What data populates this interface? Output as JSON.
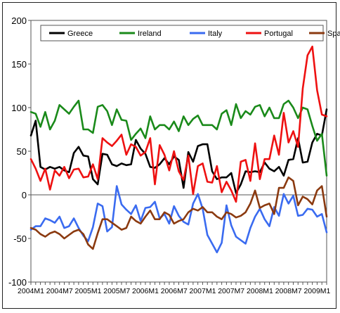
{
  "chart_data": {
    "type": "line",
    "x": [
      "2004M1",
      "2004M2",
      "2004M3",
      "2004M4",
      "2004M5",
      "2004M6",
      "2004M7",
      "2004M8",
      "2004M9",
      "2004M10",
      "2004M11",
      "2004M12",
      "2005M1",
      "2005M2",
      "2005M3",
      "2005M4",
      "2005M5",
      "2005M6",
      "2005M7",
      "2005M8",
      "2005M9",
      "2005M10",
      "2005M11",
      "2005M12",
      "2006M1",
      "2006M2",
      "2006M3",
      "2006M4",
      "2006M5",
      "2006M6",
      "2006M7",
      "2006M8",
      "2006M9",
      "2006M10",
      "2006M11",
      "2006M12",
      "2007M1",
      "2007M2",
      "2007M3",
      "2007M4",
      "2007M5",
      "2007M6",
      "2007M7",
      "2007M8",
      "2007M9",
      "2007M10",
      "2007M11",
      "2007M12",
      "2008M1",
      "2008M2",
      "2008M3",
      "2008M4",
      "2008M5",
      "2008M6",
      "2008M7",
      "2008M8",
      "2008M9",
      "2008M10",
      "2008M11",
      "2008M12",
      "2009M1",
      "2009M2",
      "2009M3"
    ],
    "x_tick_labels": [
      "2004M1",
      "2004M7",
      "2005M1",
      "2005M7",
      "2006M1",
      "2006M7",
      "2007M1",
      "2007M7",
      "2008M1",
      "2008M7",
      "2009M1"
    ],
    "ylim": [
      -100,
      200
    ],
    "y_ticks": [
      -100,
      -50,
      0,
      50,
      100,
      150,
      200
    ],
    "grid": false,
    "legend_position": "top",
    "series": [
      {
        "name": "Greece",
        "color": "#000000",
        "values": [
          68,
          85,
          32,
          29,
          32,
          30,
          32,
          28,
          26,
          48,
          55,
          45,
          44,
          18,
          12,
          47,
          46,
          35,
          33,
          36,
          34,
          35,
          63,
          53,
          47,
          32,
          31,
          35,
          42,
          35,
          44,
          40,
          8,
          49,
          38,
          56,
          58,
          58,
          27,
          18,
          20,
          20,
          25,
          2,
          12,
          27,
          26,
          27,
          26,
          37,
          30,
          27,
          32,
          22,
          40,
          41,
          65,
          37,
          38,
          60,
          70,
          68,
          98
        ]
      },
      {
        "name": "Ireland",
        "color": "#1a8a1a",
        "values": [
          95,
          93,
          78,
          95,
          75,
          85,
          103,
          98,
          93,
          101,
          108,
          75,
          75,
          71,
          101,
          103,
          96,
          80,
          98,
          86,
          85,
          63,
          70,
          76,
          65,
          90,
          75,
          80,
          80,
          75,
          84,
          73,
          90,
          80,
          87,
          91,
          80,
          80,
          80,
          75,
          93,
          97,
          80,
          104,
          88,
          96,
          92,
          101,
          103,
          90,
          100,
          88,
          88,
          104,
          108,
          100,
          88,
          100,
          98,
          79,
          62,
          70,
          22
        ]
      },
      {
        "name": "Italy",
        "color": "#3a6bf0",
        "values": [
          -40,
          -36,
          -36,
          -27,
          -29,
          -32,
          -25,
          -38,
          -36,
          -27,
          -38,
          -47,
          -53,
          -37,
          -10,
          -13,
          -42,
          -37,
          10,
          -11,
          -17,
          -22,
          -12,
          -30,
          -15,
          -14,
          -8,
          -27,
          -22,
          -33,
          -13,
          -24,
          -31,
          -34,
          -10,
          1,
          -16,
          -46,
          -56,
          -66,
          -55,
          -12,
          -35,
          -48,
          -52,
          -56,
          -38,
          -25,
          -16,
          -28,
          -36,
          -14,
          -24,
          1,
          -10,
          -1,
          -24,
          -23,
          -16,
          -17,
          -25,
          -22,
          -43
        ]
      },
      {
        "name": "Portugal",
        "color": "#ee1111",
        "values": [
          41,
          30,
          16,
          30,
          6,
          28,
          22,
          32,
          19,
          29,
          30,
          20,
          21,
          35,
          18,
          65,
          60,
          56,
          62,
          69,
          46,
          58,
          55,
          45,
          49,
          65,
          12,
          57,
          46,
          28,
          50,
          27,
          17,
          45,
          1,
          33,
          36,
          15,
          14,
          33,
          3,
          15,
          5,
          -8,
          38,
          40,
          16,
          59,
          18,
          41,
          41,
          68,
          46,
          94,
          60,
          73,
          55,
          122,
          160,
          170,
          120,
          92,
          90
        ]
      },
      {
        "name": "Spain",
        "color": "#8b3a10",
        "values": [
          -38,
          -40,
          -45,
          -48,
          -44,
          -42,
          -45,
          -50,
          -46,
          -42,
          -40,
          -45,
          -57,
          -62,
          -44,
          -28,
          -28,
          -32,
          -36,
          -40,
          -38,
          -25,
          -30,
          -33,
          -25,
          -18,
          -28,
          -28,
          -20,
          -23,
          -33,
          -30,
          -28,
          -20,
          -16,
          -18,
          -14,
          -20,
          -20,
          -25,
          -28,
          -20,
          -22,
          -26,
          -24,
          -20,
          -10,
          5,
          -15,
          -12,
          -10,
          -22,
          8,
          8,
          20,
          16,
          -12,
          -2,
          -5,
          -11,
          5,
          10,
          -25
        ]
      }
    ]
  }
}
